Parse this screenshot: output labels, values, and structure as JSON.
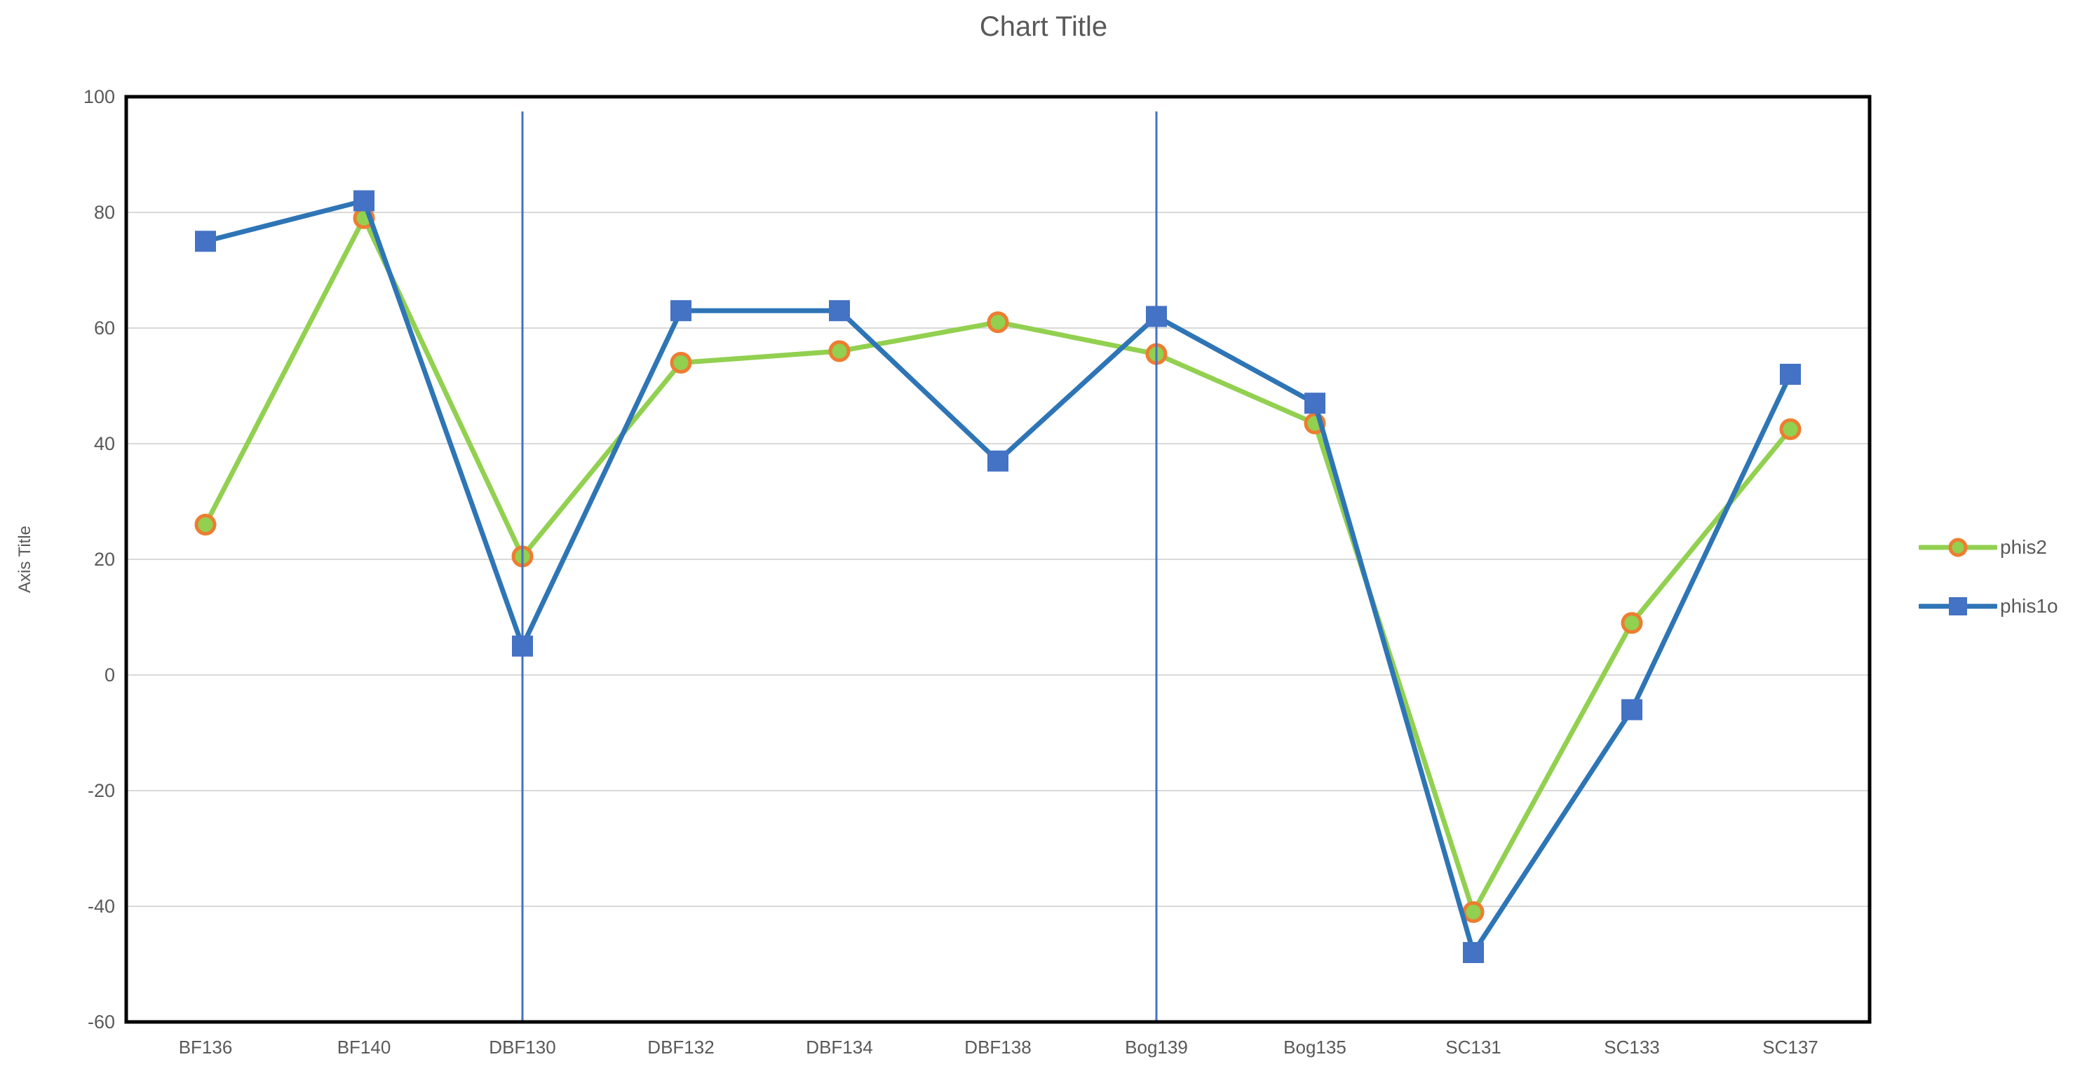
{
  "title": "Chart Title",
  "y_axis_title": "Axis Title",
  "legend": {
    "position": "right",
    "items": [
      {
        "label": "phis2",
        "swatch": "green-line-orange-circle"
      },
      {
        "label": "phis1o",
        "swatch": "blue-line-blue-square"
      }
    ]
  },
  "colors": {
    "title_text": "#595959",
    "axis_text": "#595959",
    "gridline": "#D9D9D9",
    "plot_border": "#000000",
    "vertical_line": "#4472C4",
    "phis2_line": "#92D050",
    "phis2_marker_ring": "#ED7D31",
    "phis2_marker_fill": "#92D050",
    "phis1o_line": "#2E75B6",
    "phis1o_marker_fill": "#4472C4"
  },
  "chart_data": {
    "type": "line",
    "title": "Chart Title",
    "xlabel": "",
    "ylabel": "Axis Title",
    "categories": [
      "BF136",
      "BF140",
      "DBF130",
      "DBF132",
      "DBF134",
      "DBF138",
      "Bog139",
      "Bog135",
      "SC131",
      "SC133",
      "SC137"
    ],
    "series": [
      {
        "name": "phis2",
        "color": "#92D050",
        "line_width": 7,
        "marker": "circle",
        "marker_fill": "#92D050",
        "marker_ring": "#ED7D31",
        "values": [
          26,
          79,
          20.5,
          54,
          56,
          61,
          55.5,
          43.5,
          -41,
          9,
          42.5
        ]
      },
      {
        "name": "phis1o",
        "color": "#2E75B6",
        "line_width": 7,
        "marker": "square",
        "marker_fill": "#4472C4",
        "values": [
          75,
          82,
          5,
          63,
          63,
          37,
          62,
          47,
          -48,
          -6,
          52
        ]
      }
    ],
    "ylim": [
      -60,
      100
    ],
    "ytick_step": 20,
    "ytick_labels": [
      "100",
      "80",
      "60",
      "40",
      "20",
      "0",
      "-20",
      "-40",
      "-60"
    ],
    "grid": "horizontal",
    "legend_position": "right",
    "vertical_lines": {
      "color": "#4472C4",
      "width": 3,
      "categories": [
        "DBF130",
        "Bog139"
      ]
    }
  }
}
